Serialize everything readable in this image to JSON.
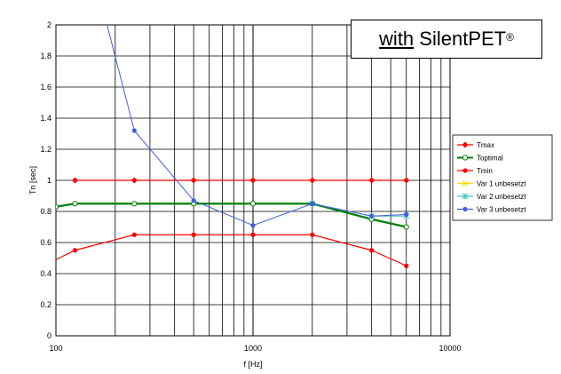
{
  "chart_data": {
    "type": "line",
    "xlabel": "f [Hz]",
    "ylabel": "Tn [sec]",
    "xscale": "log",
    "xlim": [
      100,
      10000
    ],
    "ylim": [
      0,
      2
    ],
    "x_ticks": [
      "100",
      "1000",
      "10000"
    ],
    "y_ticks": [
      "0",
      "0.2",
      "0.4",
      "0.6",
      "0.8",
      "1",
      "1.2",
      "1.4",
      "1.6",
      "1.8",
      "2"
    ],
    "grid": true,
    "legend_position": "right",
    "series": [
      {
        "name": "Tmax",
        "color": "#ff0000",
        "marker": "filled-diamond",
        "x": [
          125,
          250,
          500,
          1000,
          2000,
          4000,
          6000
        ],
        "y": [
          1.0,
          1.0,
          1.0,
          1.0,
          1.0,
          1.0,
          1.0
        ]
      },
      {
        "name": "Toptimal",
        "color": "#008000",
        "marker": "open-circle",
        "x": [
          100,
          125,
          250,
          500,
          1000,
          2000,
          4000,
          6000
        ],
        "y": [
          0.83,
          0.85,
          0.85,
          0.85,
          0.85,
          0.85,
          0.75,
          0.7
        ]
      },
      {
        "name": "Tmin",
        "color": "#ff0000",
        "marker": "filled-circle",
        "x": [
          100,
          125,
          250,
          500,
          1000,
          2000,
          4000,
          6000
        ],
        "y": [
          0.49,
          0.55,
          0.65,
          0.65,
          0.65,
          0.65,
          0.55,
          0.45
        ]
      },
      {
        "name": "Var 1 unbesetzt",
        "color": "#ffd700",
        "marker": "x",
        "x": [],
        "y": []
      },
      {
        "name": "Var 2 unbesetzt",
        "color": "#40c0c0",
        "marker": "star",
        "x": [
          2000,
          4000,
          6000
        ],
        "y": [
          0.85,
          0.77,
          0.77
        ]
      },
      {
        "name": "Var 3 unbesetzt",
        "color": "#4060e0",
        "marker": "filled-circle",
        "x": [
          180,
          250,
          500,
          1000,
          2000,
          4000,
          6000
        ],
        "y": [
          2.02,
          1.32,
          0.87,
          0.71,
          0.85,
          0.77,
          0.78
        ]
      }
    ]
  },
  "annotation": {
    "underlined": "with",
    "text": " SilentPET",
    "sup": "®"
  }
}
